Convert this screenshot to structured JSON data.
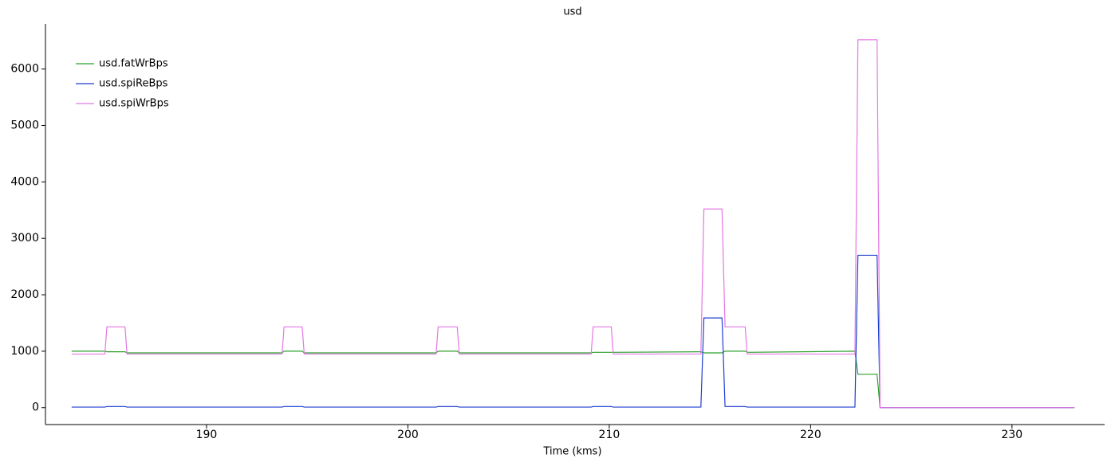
{
  "chart_data": {
    "type": "line",
    "title": "usd",
    "x_label": "Time (kms)",
    "x": [
      183.3,
      184.95,
      185.05,
      185.95,
      186.05,
      193.75,
      193.85,
      194.75,
      194.85,
      201.4,
      201.5,
      202.45,
      202.55,
      209.1,
      209.2,
      210.1,
      210.2,
      214.55,
      214.7,
      215.6,
      215.75,
      216.75,
      216.85,
      222.2,
      222.35,
      223.3,
      223.45,
      233.1
    ],
    "series": [
      {
        "name": "usd.fatWrBps",
        "color": "#2ca02c",
        "values": [
          1000,
          1000,
          990,
          990,
          970,
          970,
          1000,
          1000,
          970,
          970,
          1000,
          1000,
          970,
          970,
          980,
          980,
          980,
          990,
          970,
          970,
          1000,
          1000,
          980,
          1000,
          590,
          590,
          0,
          0
        ]
      },
      {
        "name": "usd.spiReBps",
        "color": "#1f3fd0",
        "values": [
          10,
          10,
          20,
          20,
          10,
          10,
          20,
          20,
          10,
          10,
          20,
          20,
          10,
          10,
          20,
          20,
          10,
          10,
          1590,
          1590,
          20,
          20,
          10,
          10,
          2700,
          2700,
          0,
          0
        ]
      },
      {
        "name": "usd.spiWrBps",
        "color": "#e377e3",
        "values": [
          950,
          950,
          1430,
          1430,
          950,
          950,
          1430,
          1430,
          950,
          950,
          1430,
          1430,
          950,
          950,
          1430,
          1430,
          950,
          950,
          3520,
          3520,
          1430,
          1430,
          950,
          950,
          6520,
          6520,
          0,
          0
        ]
      }
    ],
    "xlim": [
      182,
      234.6
    ],
    "xticks": [
      190,
      200,
      210,
      220,
      230
    ],
    "ylim": [
      -300,
      6800
    ],
    "yticks": [
      0,
      1000,
      2000,
      3000,
      4000,
      5000,
      6000
    ],
    "legend": "upper-left"
  }
}
